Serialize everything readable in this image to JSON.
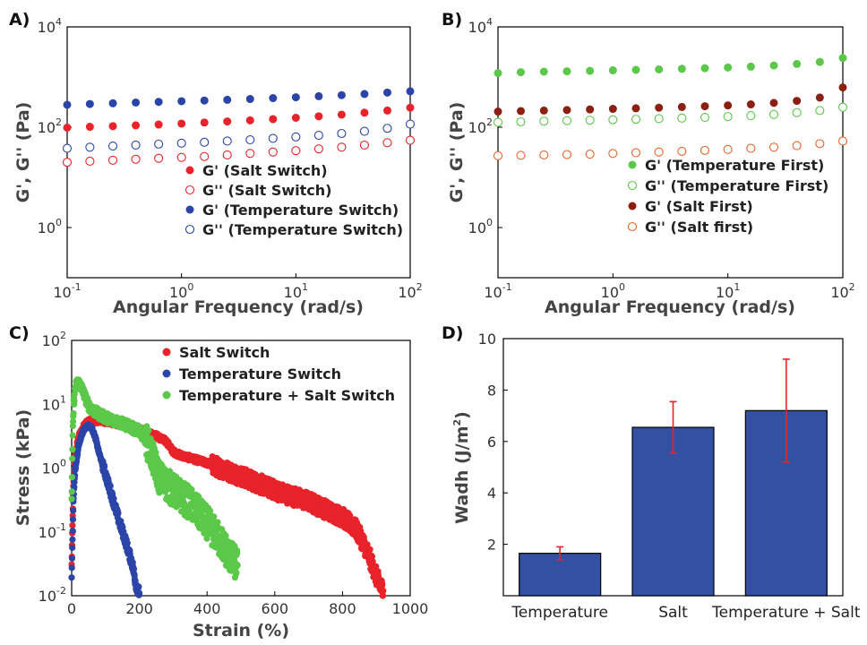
{
  "chart_data": [
    {
      "panel": "A)",
      "type": "scatter",
      "xlabel": "Angular Frequency (rad/s)",
      "ylabel": "G', G'' (Pa)",
      "xscale": "log",
      "yscale": "log",
      "xlim": [
        0.1,
        100
      ],
      "ylim": [
        0.1,
        10000
      ],
      "xticks": [
        {
          "base": "10",
          "exp": "-1"
        },
        {
          "base": "10",
          "exp": "0"
        },
        {
          "base": "10",
          "exp": "1"
        },
        {
          "base": "10",
          "exp": "2"
        }
      ],
      "yticks": [
        {
          "base": "10",
          "exp": "0"
        },
        {
          "base": "10",
          "exp": "2"
        },
        {
          "base": "10",
          "exp": "4"
        }
      ],
      "legend_position": "lower-right",
      "series": [
        {
          "name": "G' (Salt Switch)",
          "color": "#e8232a",
          "filled": true,
          "x": [
            0.1,
            0.158,
            0.251,
            0.398,
            0.631,
            1,
            1.585,
            2.512,
            3.981,
            6.31,
            10,
            15.85,
            25.12,
            39.81,
            63.1,
            100
          ],
          "y": [
            98,
            102,
            105,
            109,
            113,
            118,
            124,
            130,
            137,
            145,
            154,
            165,
            178,
            195,
            215,
            245
          ]
        },
        {
          "name": "G'' (Salt Switch)",
          "color": "#e8232a",
          "filled": false,
          "x": [
            0.1,
            0.158,
            0.251,
            0.398,
            0.631,
            1,
            1.585,
            2.512,
            3.981,
            6.31,
            10,
            15.85,
            25.12,
            39.81,
            63.1,
            100
          ],
          "y": [
            20,
            21,
            22,
            23,
            24,
            25,
            26,
            28,
            30,
            32,
            34,
            37,
            40,
            44,
            49,
            55
          ]
        },
        {
          "name": "G' (Temperature Switch)",
          "color": "#2b44a8",
          "filled": true,
          "x": [
            0.1,
            0.158,
            0.251,
            0.398,
            0.631,
            1,
            1.585,
            2.512,
            3.981,
            6.31,
            10,
            15.85,
            25.12,
            39.81,
            63.1,
            100
          ],
          "y": [
            280,
            290,
            300,
            310,
            320,
            330,
            340,
            352,
            365,
            380,
            395,
            415,
            435,
            460,
            490,
            520
          ]
        },
        {
          "name": "G'' (Temperature Switch)",
          "color": "#2b44a8",
          "filled": false,
          "x": [
            0.1,
            0.158,
            0.251,
            0.398,
            0.631,
            1,
            1.585,
            2.512,
            3.981,
            6.31,
            10,
            15.85,
            25.12,
            39.81,
            63.1,
            100
          ],
          "y": [
            38,
            40,
            42,
            44,
            46,
            48,
            50,
            53,
            56,
            60,
            64,
            69,
            75,
            83,
            95,
            115
          ]
        }
      ]
    },
    {
      "panel": "B)",
      "type": "scatter",
      "xlabel": "Angular Frequency (rad/s)",
      "ylabel": "G', G'' (Pa)",
      "xscale": "log",
      "yscale": "log",
      "xlim": [
        0.1,
        100
      ],
      "ylim": [
        0.1,
        10000
      ],
      "xticks": [
        {
          "base": "10",
          "exp": "-1"
        },
        {
          "base": "10",
          "exp": "0"
        },
        {
          "base": "10",
          "exp": "1"
        },
        {
          "base": "10",
          "exp": "2"
        }
      ],
      "yticks": [
        {
          "base": "10",
          "exp": "0"
        },
        {
          "base": "10",
          "exp": "2"
        },
        {
          "base": "10",
          "exp": "4"
        }
      ],
      "legend_position": "lower-right",
      "series": [
        {
          "name": "G' (Temperature First)",
          "color": "#5cc84a",
          "filled": true,
          "x": [
            0.1,
            0.158,
            0.251,
            0.398,
            0.631,
            1,
            1.585,
            2.512,
            3.981,
            6.31,
            10,
            15.85,
            25.12,
            39.81,
            63.1,
            100
          ],
          "y": [
            1200,
            1250,
            1280,
            1300,
            1330,
            1360,
            1390,
            1420,
            1460,
            1500,
            1550,
            1610,
            1700,
            1820,
            2000,
            2400
          ]
        },
        {
          "name": "G'' (Temperature First)",
          "color": "#5cc84a",
          "filled": false,
          "x": [
            0.1,
            0.158,
            0.251,
            0.398,
            0.631,
            1,
            1.585,
            2.512,
            3.981,
            6.31,
            10,
            15.85,
            25.12,
            39.81,
            63.1,
            100
          ],
          "y": [
            125,
            128,
            132,
            135,
            138,
            141,
            144,
            148,
            152,
            157,
            163,
            170,
            180,
            195,
            215,
            250
          ]
        },
        {
          "name": "G' (Salt First)",
          "color": "#8b1f12",
          "filled": true,
          "x": [
            0.1,
            0.158,
            0.251,
            0.398,
            0.631,
            1,
            1.585,
            2.512,
            3.981,
            6.31,
            10,
            15.85,
            25.12,
            39.81,
            63.1,
            100
          ],
          "y": [
            205,
            210,
            215,
            220,
            226,
            232,
            238,
            245,
            253,
            262,
            272,
            285,
            305,
            335,
            390,
            620
          ]
        },
        {
          "name": "G'' (Salt first)",
          "color": "#e8652a",
          "filled": false,
          "x": [
            0.1,
            0.158,
            0.251,
            0.398,
            0.631,
            1,
            1.585,
            2.512,
            3.981,
            6.31,
            10,
            15.85,
            25.12,
            39.81,
            63.1,
            100
          ],
          "y": [
            27,
            27.5,
            28,
            28.5,
            29,
            30,
            31,
            32,
            33,
            34.5,
            36,
            38,
            40,
            43,
            47,
            53
          ]
        }
      ]
    },
    {
      "panel": "C)",
      "type": "scatter",
      "xlabel": "Strain (%)",
      "ylabel": "Stress (kPa)",
      "xscale": "linear",
      "yscale": "log",
      "xlim": [
        0,
        1000
      ],
      "ylim": [
        0.01,
        100
      ],
      "xticks": [
        "0",
        "200",
        "400",
        "600",
        "800",
        "1000"
      ],
      "yticks": [
        {
          "base": "10",
          "exp": "-2"
        },
        {
          "base": "10",
          "exp": "-1"
        },
        {
          "base": "10",
          "exp": "0"
        },
        {
          "base": "10",
          "exp": "1"
        },
        {
          "base": "10",
          "exp": "2"
        }
      ],
      "legend_position": "top-right",
      "series": [
        {
          "name": "Salt Switch",
          "color": "#e8232a",
          "x": [
            0,
            5,
            10,
            20,
            40,
            60,
            80,
            100,
            150,
            200,
            250,
            280,
            300,
            320,
            400,
            500,
            600,
            700,
            800,
            840,
            860,
            880,
            900,
            910,
            920
          ],
          "y": [
            0.03,
            0.5,
            1.5,
            3,
            5,
            5.6,
            5.6,
            5.4,
            4.8,
            4.0,
            3.2,
            2.6,
            1.8,
            1.6,
            1.2,
            0.75,
            0.45,
            0.3,
            0.17,
            0.11,
            0.07,
            0.04,
            0.02,
            0.015,
            0.012
          ],
          "noise": 0.09
        },
        {
          "name": "Temperature Switch",
          "color": "#2b44a8",
          "x": [
            0,
            5,
            10,
            20,
            30,
            40,
            50,
            60,
            70,
            80,
            100,
            120,
            140,
            160,
            180,
            190,
            200
          ],
          "y": [
            0.02,
            0.3,
            0.9,
            2.2,
            3.4,
            4.3,
            4.6,
            4.2,
            3.0,
            1.8,
            0.8,
            0.35,
            0.15,
            0.07,
            0.03,
            0.015,
            0.011
          ],
          "noise": 0.05
        },
        {
          "name": "Temperature + Salt Switch",
          "color": "#5cc84a",
          "x": [
            0,
            3,
            6,
            10,
            15,
            20,
            30,
            40,
            50,
            70,
            100,
            150,
            200,
            220,
            240,
            260,
            300,
            350,
            400,
            440,
            470,
            490
          ],
          "y": [
            0.3,
            3,
            10,
            17,
            21,
            22,
            18,
            13,
            9.5,
            7.5,
            6.2,
            5,
            3.8,
            2.8,
            1.4,
            0.7,
            0.45,
            0.28,
            0.14,
            0.07,
            0.04,
            0.03
          ],
          "noise": 0.16
        }
      ]
    },
    {
      "panel": "D)",
      "type": "bar",
      "ylabel": "Wadh (J/m",
      "ylabel_sup": "2",
      "ylabel_close": ")",
      "categories": [
        "Temperature",
        "Salt",
        "Temperature + Salt"
      ],
      "values": [
        1.65,
        6.55,
        7.2
      ],
      "errors": [
        0.25,
        1.0,
        2.0
      ],
      "ylim": [
        0,
        10
      ],
      "yticks": [
        "2",
        "4",
        "6",
        "8",
        "10"
      ],
      "bar_color": "#3350a3",
      "error_color": "#e8232a"
    }
  ]
}
